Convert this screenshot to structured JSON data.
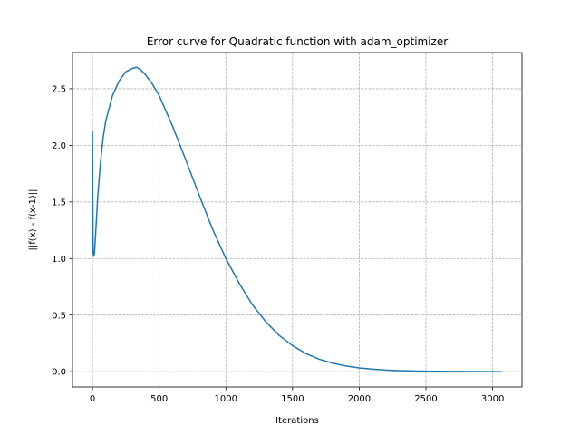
{
  "chart_data": {
    "type": "line",
    "title": "Error curve for Quadratic function with adam_optimizer",
    "xlabel": "Iterations",
    "ylabel": "||f(x) - f(x-1)||",
    "xlim": [
      -150,
      3220
    ],
    "ylim": [
      -0.135,
      2.82
    ],
    "xticks": [
      0,
      500,
      1000,
      1500,
      2000,
      2500,
      3000
    ],
    "yticks": [
      0.0,
      0.5,
      1.0,
      1.5,
      2.0,
      2.5
    ],
    "xtick_labels": [
      "0",
      "500",
      "1000",
      "1500",
      "2000",
      "2500",
      "3000"
    ],
    "ytick_labels": [
      "0.0",
      "0.5",
      "1.0",
      "1.5",
      "2.0",
      "2.5"
    ],
    "grid": true,
    "series": [
      {
        "color": "#1f77b4",
        "x": [
          0,
          2,
          5,
          10,
          15,
          20,
          30,
          40,
          60,
          80,
          100,
          150,
          200,
          250,
          300,
          330,
          360,
          400,
          450,
          500,
          600,
          700,
          800,
          900,
          1000,
          1100,
          1200,
          1300,
          1400,
          1500,
          1600,
          1700,
          1800,
          1900,
          2000,
          2100,
          2200,
          2300,
          2400,
          2500,
          2700,
          2900,
          3070
        ],
        "y": [
          2.13,
          1.55,
          1.05,
          1.02,
          1.05,
          1.15,
          1.35,
          1.56,
          1.85,
          2.07,
          2.22,
          2.44,
          2.57,
          2.65,
          2.68,
          2.69,
          2.67,
          2.62,
          2.54,
          2.44,
          2.17,
          1.87,
          1.56,
          1.26,
          1.0,
          0.78,
          0.59,
          0.44,
          0.32,
          0.23,
          0.16,
          0.11,
          0.075,
          0.05,
          0.033,
          0.022,
          0.014,
          0.009,
          0.006,
          0.004,
          0.002,
          0.001,
          0.0
        ]
      }
    ]
  }
}
